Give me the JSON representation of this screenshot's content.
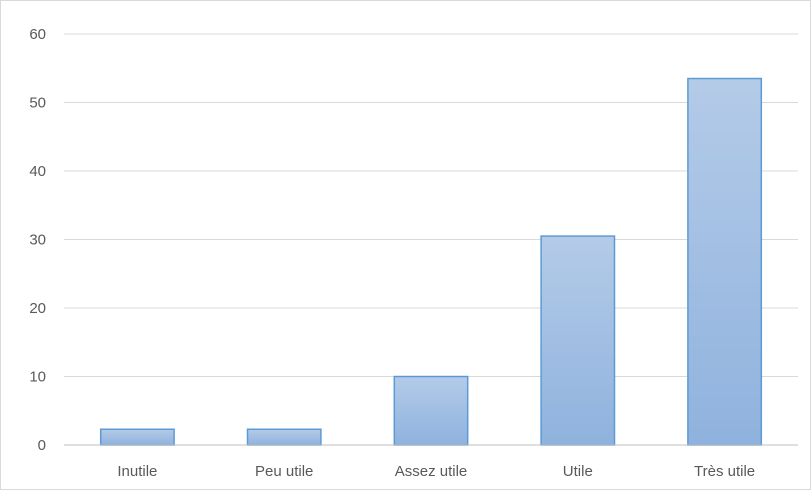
{
  "chart_data": {
    "type": "bar",
    "title": "",
    "xlabel": "",
    "ylabel": "",
    "categories": [
      "Inutile",
      "Peu utile",
      "Assez utile",
      "Utile",
      "Très utile"
    ],
    "values": [
      2.3,
      2.3,
      10,
      30.5,
      53.5
    ],
    "ylim": [
      0,
      60
    ],
    "yticks": [
      0,
      10,
      20,
      30,
      40,
      50,
      60
    ],
    "grid": true,
    "legend": "none",
    "colors": {
      "bar_top": "#b4cbe8",
      "bar_bottom": "#8fb2de",
      "bar_border": "#5b9bd5",
      "grid": "#d9d9d9",
      "axis": "#bfbfbf",
      "text": "#595959"
    }
  }
}
